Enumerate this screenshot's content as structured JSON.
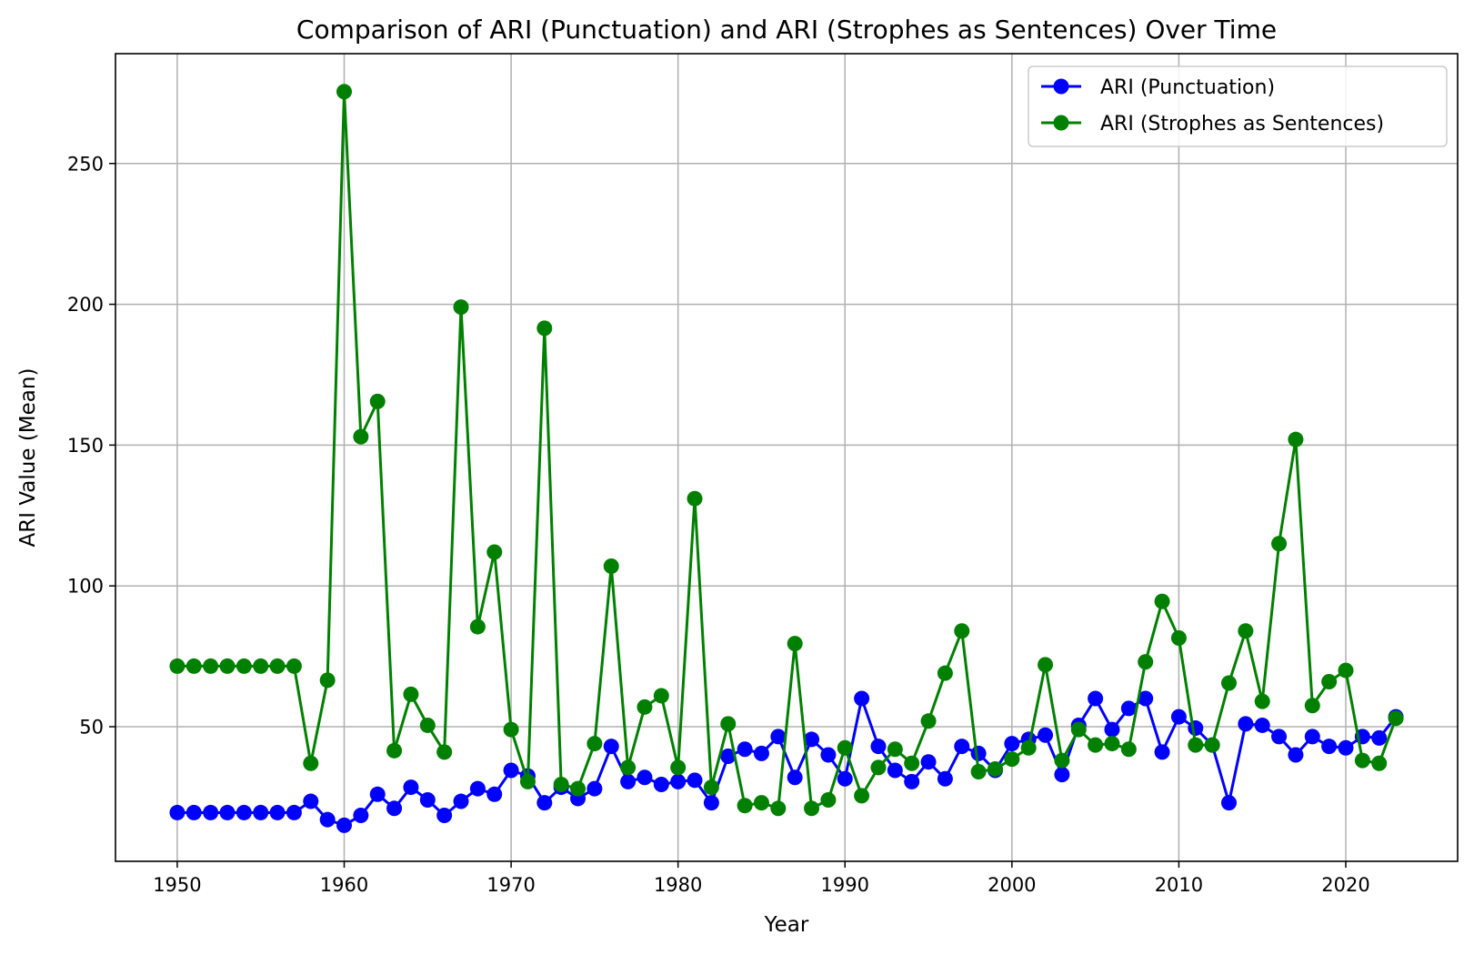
{
  "chart_data": {
    "type": "line",
    "title": "Comparison of ARI (Punctuation) and ARI (Strophes as Sentences) Over Time",
    "xlabel": "Year",
    "ylabel": "ARI Value (Mean)",
    "xlim": [
      1946.3,
      2026.7
    ],
    "ylim": [
      2.2,
      289
    ],
    "x_ticks": [
      1950,
      1960,
      1970,
      1980,
      1990,
      2000,
      2010,
      2020
    ],
    "y_ticks": [
      50,
      100,
      150,
      200,
      250
    ],
    "grid": true,
    "legend_position": "top-right",
    "x": [
      1950,
      1951,
      1952,
      1953,
      1954,
      1955,
      1956,
      1957,
      1958,
      1959,
      1960,
      1961,
      1962,
      1963,
      1964,
      1965,
      1966,
      1967,
      1968,
      1969,
      1970,
      1971,
      1972,
      1973,
      1974,
      1975,
      1976,
      1977,
      1978,
      1979,
      1980,
      1981,
      1982,
      1983,
      1984,
      1985,
      1986,
      1987,
      1988,
      1989,
      1990,
      1991,
      1992,
      1993,
      1994,
      1995,
      1996,
      1997,
      1998,
      1999,
      2000,
      2001,
      2002,
      2003,
      2004,
      2005,
      2006,
      2007,
      2008,
      2009,
      2010,
      2011,
      2012,
      2013,
      2014,
      2015,
      2016,
      2017,
      2018,
      2019,
      2020,
      2021,
      2022,
      2023
    ],
    "series": [
      {
        "name": "ARI (Punctuation)",
        "color": "#0000ff",
        "values": [
          19.5,
          19.5,
          19.5,
          19.5,
          19.5,
          19.5,
          19.5,
          19.5,
          23.5,
          17,
          15,
          18.5,
          26,
          21,
          28.5,
          24,
          18.5,
          23.5,
          28,
          26,
          34.5,
          32.5,
          23,
          28.5,
          24.5,
          28,
          43,
          30.5,
          32,
          29.5,
          30.5,
          31,
          23,
          39.5,
          42,
          40.5,
          46.5,
          32,
          45.5,
          40,
          31.5,
          60,
          43,
          34.5,
          30.5,
          37.5,
          31.5,
          43,
          40.5,
          34.5,
          44,
          45.5,
          47,
          33,
          50.5,
          60,
          49,
          56.5,
          60,
          41,
          53.5,
          49.5,
          43.5,
          23,
          51,
          50.5,
          46.5,
          40,
          46.5,
          43,
          42.5,
          46.5,
          46,
          53.5
        ]
      },
      {
        "name": "ARI (Strophes as Sentences)",
        "color": "#008000",
        "values": [
          71.5,
          71.5,
          71.5,
          71.5,
          71.5,
          71.5,
          71.5,
          71.5,
          37,
          66.5,
          275.5,
          153,
          165.5,
          41.5,
          61.5,
          50.5,
          41,
          199,
          85.5,
          112,
          49,
          30.5,
          191.5,
          29.5,
          28,
          44,
          107,
          35.5,
          57,
          61,
          35.5,
          131,
          28.5,
          51,
          22,
          23,
          21,
          79.5,
          21,
          24,
          42.5,
          25.5,
          35.5,
          42,
          37,
          52,
          69,
          84,
          34,
          35,
          38.5,
          42.5,
          72,
          38,
          49,
          43.5,
          44,
          42,
          73,
          94.5,
          81.5,
          43.5,
          43.5,
          65.5,
          84,
          59,
          115,
          152,
          57.5,
          66,
          70,
          38,
          37,
          53
        ]
      }
    ]
  }
}
